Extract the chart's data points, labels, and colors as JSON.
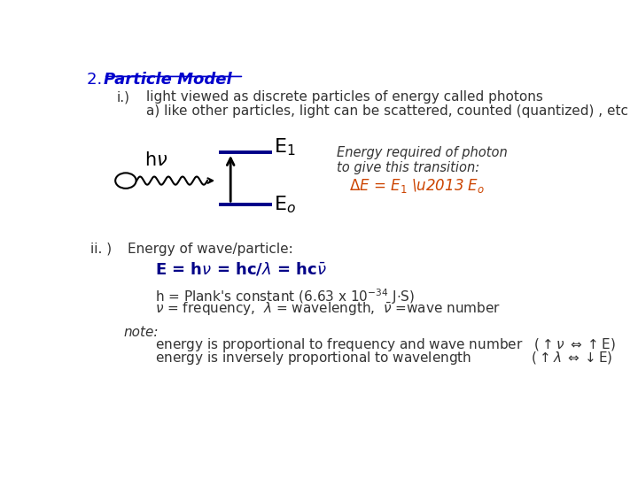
{
  "bg_color": "#ffffff",
  "title_number": "2. ",
  "title_text": "Particle Model",
  "title_color": "#0000cc",
  "title_fontsize": 13,
  "body_fontsize": 11,
  "diagram_note_italic": "Energy required of photon\nto give this transition:",
  "diagram_eq_color": "#cc4400",
  "line1_text": "light viewed as discrete particles of energy called photons",
  "line1a_text": "a) like other particles, light can be scattered, counted (quantized) , etc"
}
